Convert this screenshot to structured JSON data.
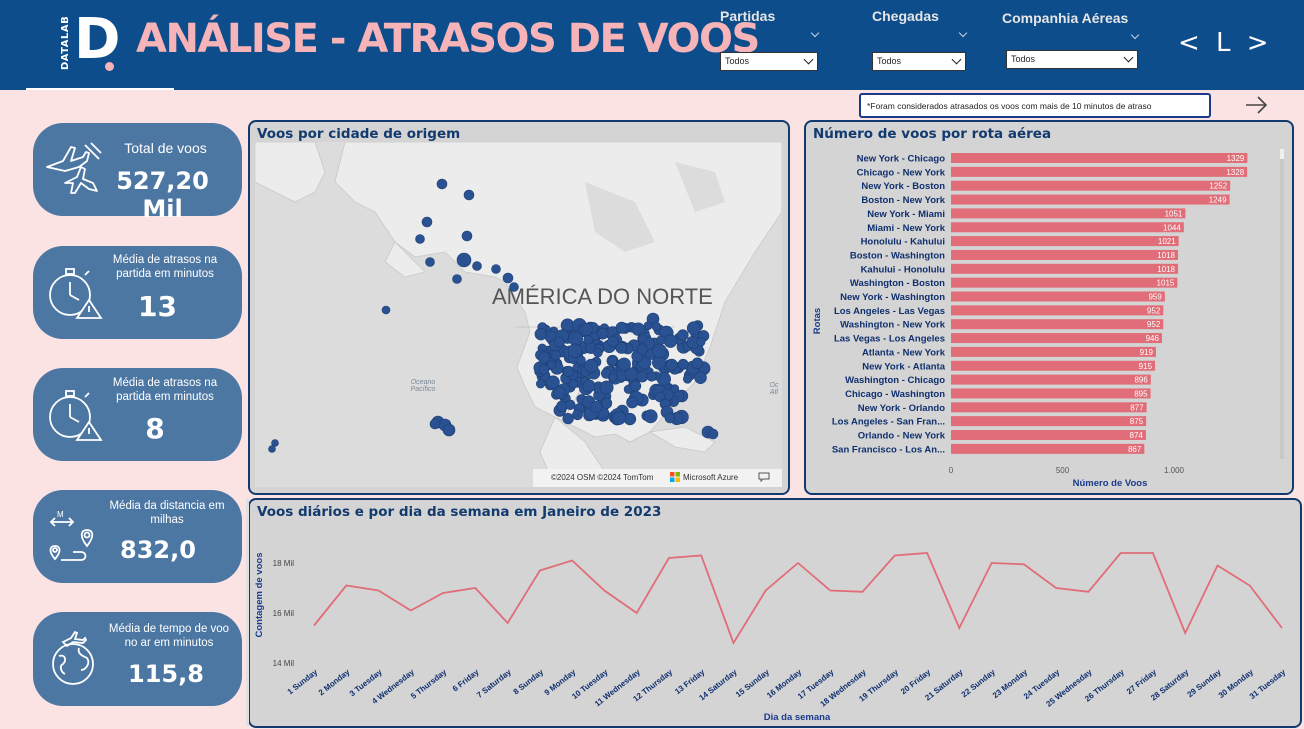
{
  "header": {
    "logo_small": "DATALAB",
    "logo_big": "D",
    "title": "ANÁLISE - ATRASOS DE VOOS",
    "nav": "< L >"
  },
  "filters": [
    {
      "label": "Partidas",
      "value": "Todos"
    },
    {
      "label": "Chegadas",
      "value": "Todos"
    },
    {
      "label": "Companhia Aéreas",
      "value": "Todos"
    }
  ],
  "note": "*Foram considerados atrasados os voos com mais de 10 minutos de atraso",
  "kpis": [
    {
      "label": "Total de voos",
      "value": "527,20 Mil",
      "icon": "airplanes-icon"
    },
    {
      "label": "Média de atrasos na partida em minutos",
      "value": "13",
      "icon": "stopwatch-warning-icon"
    },
    {
      "label": "Média de atrasos na partida em minutos",
      "value": "8",
      "icon": "stopwatch-warning-icon"
    },
    {
      "label": "Média da distancia em milhas",
      "value": "832,0",
      "icon": "route-pins-icon"
    },
    {
      "label": "Média de tempo de voo no ar em minutos",
      "value": "115,8",
      "icon": "globe-plane-icon"
    }
  ],
  "map": {
    "title": "Voos por cidade de origem",
    "region_label": "AMÉRICA DO NORTE",
    "ocean_label": "Oceano Pacífico",
    "ocean_label_right": "Oc Atl",
    "attribution": "©2024 OSM ©2024 TomTom",
    "brand": "Microsoft Azure",
    "point_color": "#2a5191"
  },
  "routes_chart": {
    "title": "Número de voos por rota aérea",
    "chart_data": {
      "type": "bar",
      "orientation": "horizontal",
      "categories": [
        "New York - Chicago",
        "Chicago - New York",
        "New York - Boston",
        "Boston - New York",
        "New York - Miami",
        "Miami - New York",
        "Honolulu - Kahului",
        "Boston - Washington",
        "Kahului - Honolulu",
        "Washington - Boston",
        "New York - Washington",
        "Los Angeles - Las Vegas",
        "Washington - New York",
        "Las Vegas - Los Angeles",
        "Atlanta - New York",
        "New York - Atlanta",
        "Washington - Chicago",
        "Chicago - Washington",
        "New York - Orlando",
        "Los Angeles - San Fran...",
        "Orlando - New York",
        "San Francisco - Los An..."
      ],
      "values": [
        1329,
        1328,
        1252,
        1249,
        1051,
        1044,
        1021,
        1018,
        1018,
        1015,
        959,
        952,
        952,
        946,
        919,
        915,
        896,
        895,
        877,
        875,
        874,
        867
      ],
      "xlabel": "Número de Voos",
      "ylabel": "Rotas",
      "xticks": [
        "0",
        "500",
        "1.000"
      ],
      "xlim": [
        0,
        1500
      ],
      "bar_color": "#e06d78"
    }
  },
  "daily_chart": {
    "title": "Voos diários e por dia da semana em Janeiro de 2023",
    "chart_data": {
      "type": "line",
      "categories": [
        "1 Sunday",
        "2 Monday",
        "3 Tuesday",
        "4 Wednesday",
        "5 Thursday",
        "6 Friday",
        "7 Saturday",
        "8 Sunday",
        "9 Monday",
        "10 Tuesday",
        "11 Wednesday",
        "12 Thursday",
        "13 Friday",
        "14 Saturday",
        "15 Sunday",
        "16 Monday",
        "17 Tuesday",
        "18 Wednesday",
        "19 Thursday",
        "20 Friday",
        "21 Saturday",
        "22 Sunday",
        "23 Monday",
        "24 Tuesday",
        "25 Wednesday",
        "26 Thursday",
        "27 Friday",
        "28 Saturday",
        "29 Sunday",
        "30 Monday",
        "31 Tuesday"
      ],
      "values": [
        15500,
        17100,
        16900,
        16100,
        16800,
        17000,
        15600,
        17700,
        18100,
        16900,
        16000,
        18200,
        18300,
        14800,
        16900,
        18000,
        16900,
        16850,
        18300,
        18400,
        15400,
        18000,
        17950,
        17000,
        16850,
        18400,
        18400,
        15200,
        17900,
        17100,
        15400
      ],
      "xlabel": "Dia da semana",
      "ylabel": "Contagem de voos",
      "yticks": [
        "14 Mil",
        "16 Mil",
        "18 Mil"
      ],
      "ylim": [
        14000,
        18800
      ],
      "line_color": "#e06d78"
    }
  }
}
